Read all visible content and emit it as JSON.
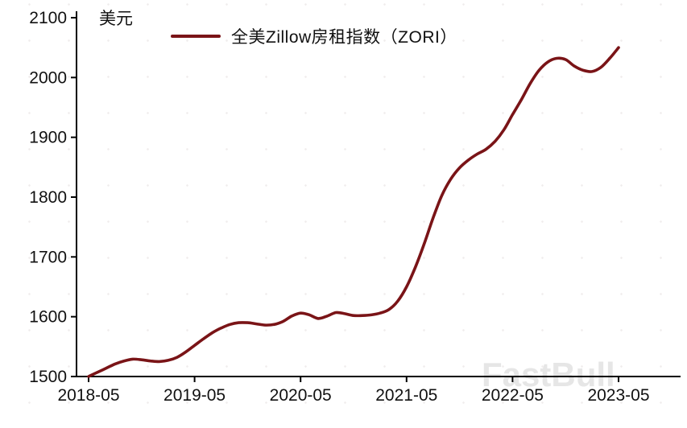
{
  "chart_data": {
    "type": "line",
    "title": "",
    "unit_label": "美元",
    "legend": "全美Zillow房租指数（ZORI）",
    "watermark": "FastBull",
    "line_color": "#7a1417",
    "axis_color": "#000000",
    "tick_label_color": "#111111",
    "watermark_color": "#e4e4e4",
    "ylim": [
      1500,
      2100
    ],
    "y_ticks": [
      1500,
      1600,
      1700,
      1800,
      1900,
      2000,
      2100
    ],
    "x_tick_labels": [
      "2018-05",
      "2019-05",
      "2020-05",
      "2021-05",
      "2022-05",
      "2023-05"
    ],
    "x_tick_month_indexes": [
      0,
      12,
      24,
      36,
      48,
      60
    ],
    "series": [
      {
        "name": "全美Zillow房租指数（ZORI）",
        "x_start": "2018-05",
        "x_end": "2023-05",
        "frequency": "monthly",
        "values": [
          1500,
          1507,
          1514,
          1521,
          1526,
          1529,
          1528,
          1526,
          1525,
          1527,
          1532,
          1541,
          1552,
          1563,
          1573,
          1581,
          1587,
          1590,
          1590,
          1588,
          1586,
          1587,
          1592,
          1601,
          1606,
          1603,
          1597,
          1601,
          1607,
          1605,
          1602,
          1602,
          1603,
          1606,
          1612,
          1626,
          1650,
          1683,
          1722,
          1765,
          1803,
          1830,
          1849,
          1862,
          1872,
          1880,
          1893,
          1912,
          1938,
          1963,
          1990,
          2012,
          2026,
          2032,
          2030,
          2019,
          2012,
          2010,
          2017,
          2032,
          2050
        ]
      }
    ]
  }
}
